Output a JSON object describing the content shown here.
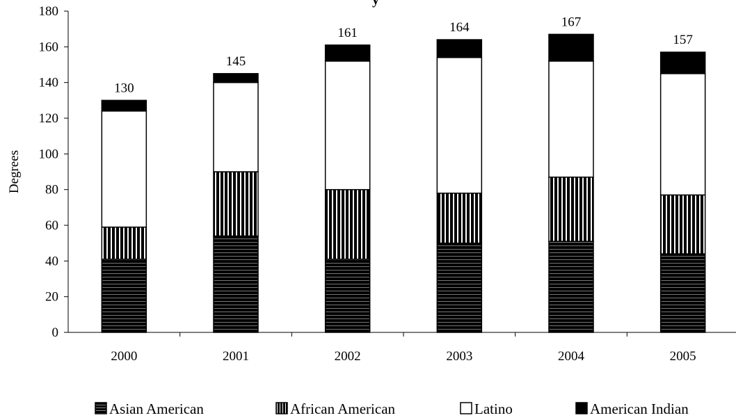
{
  "chart_data": {
    "type": "bar",
    "stacked": true,
    "title": "y",
    "ylabel": "Degrees",
    "xlabel": "",
    "ylim": [
      0,
      180
    ],
    "yticks": [
      0,
      20,
      40,
      60,
      80,
      100,
      120,
      140,
      160,
      180
    ],
    "categories": [
      "2000",
      "2001",
      "2002",
      "2003",
      "2004",
      "2005"
    ],
    "series": [
      {
        "name": "Asian American",
        "values": [
          41,
          54,
          41,
          50,
          51,
          44
        ],
        "color": "#000000",
        "pattern": "horizontal-lines"
      },
      {
        "name": "African American",
        "values": [
          18,
          36,
          39,
          28,
          36,
          33
        ],
        "color": "#000000",
        "pattern": "vertical-lines"
      },
      {
        "name": "Latino",
        "values": [
          65,
          50,
          72,
          76,
          65,
          68
        ],
        "color": "#ffffff",
        "pattern": "solid-white"
      },
      {
        "name": "American Indian",
        "values": [
          6,
          5,
          9,
          10,
          15,
          12
        ],
        "color": "#000000",
        "pattern": "solid-black"
      }
    ],
    "totals": [
      130,
      145,
      161,
      164,
      167,
      157
    ],
    "legend_position": "bottom",
    "grid": false
  }
}
